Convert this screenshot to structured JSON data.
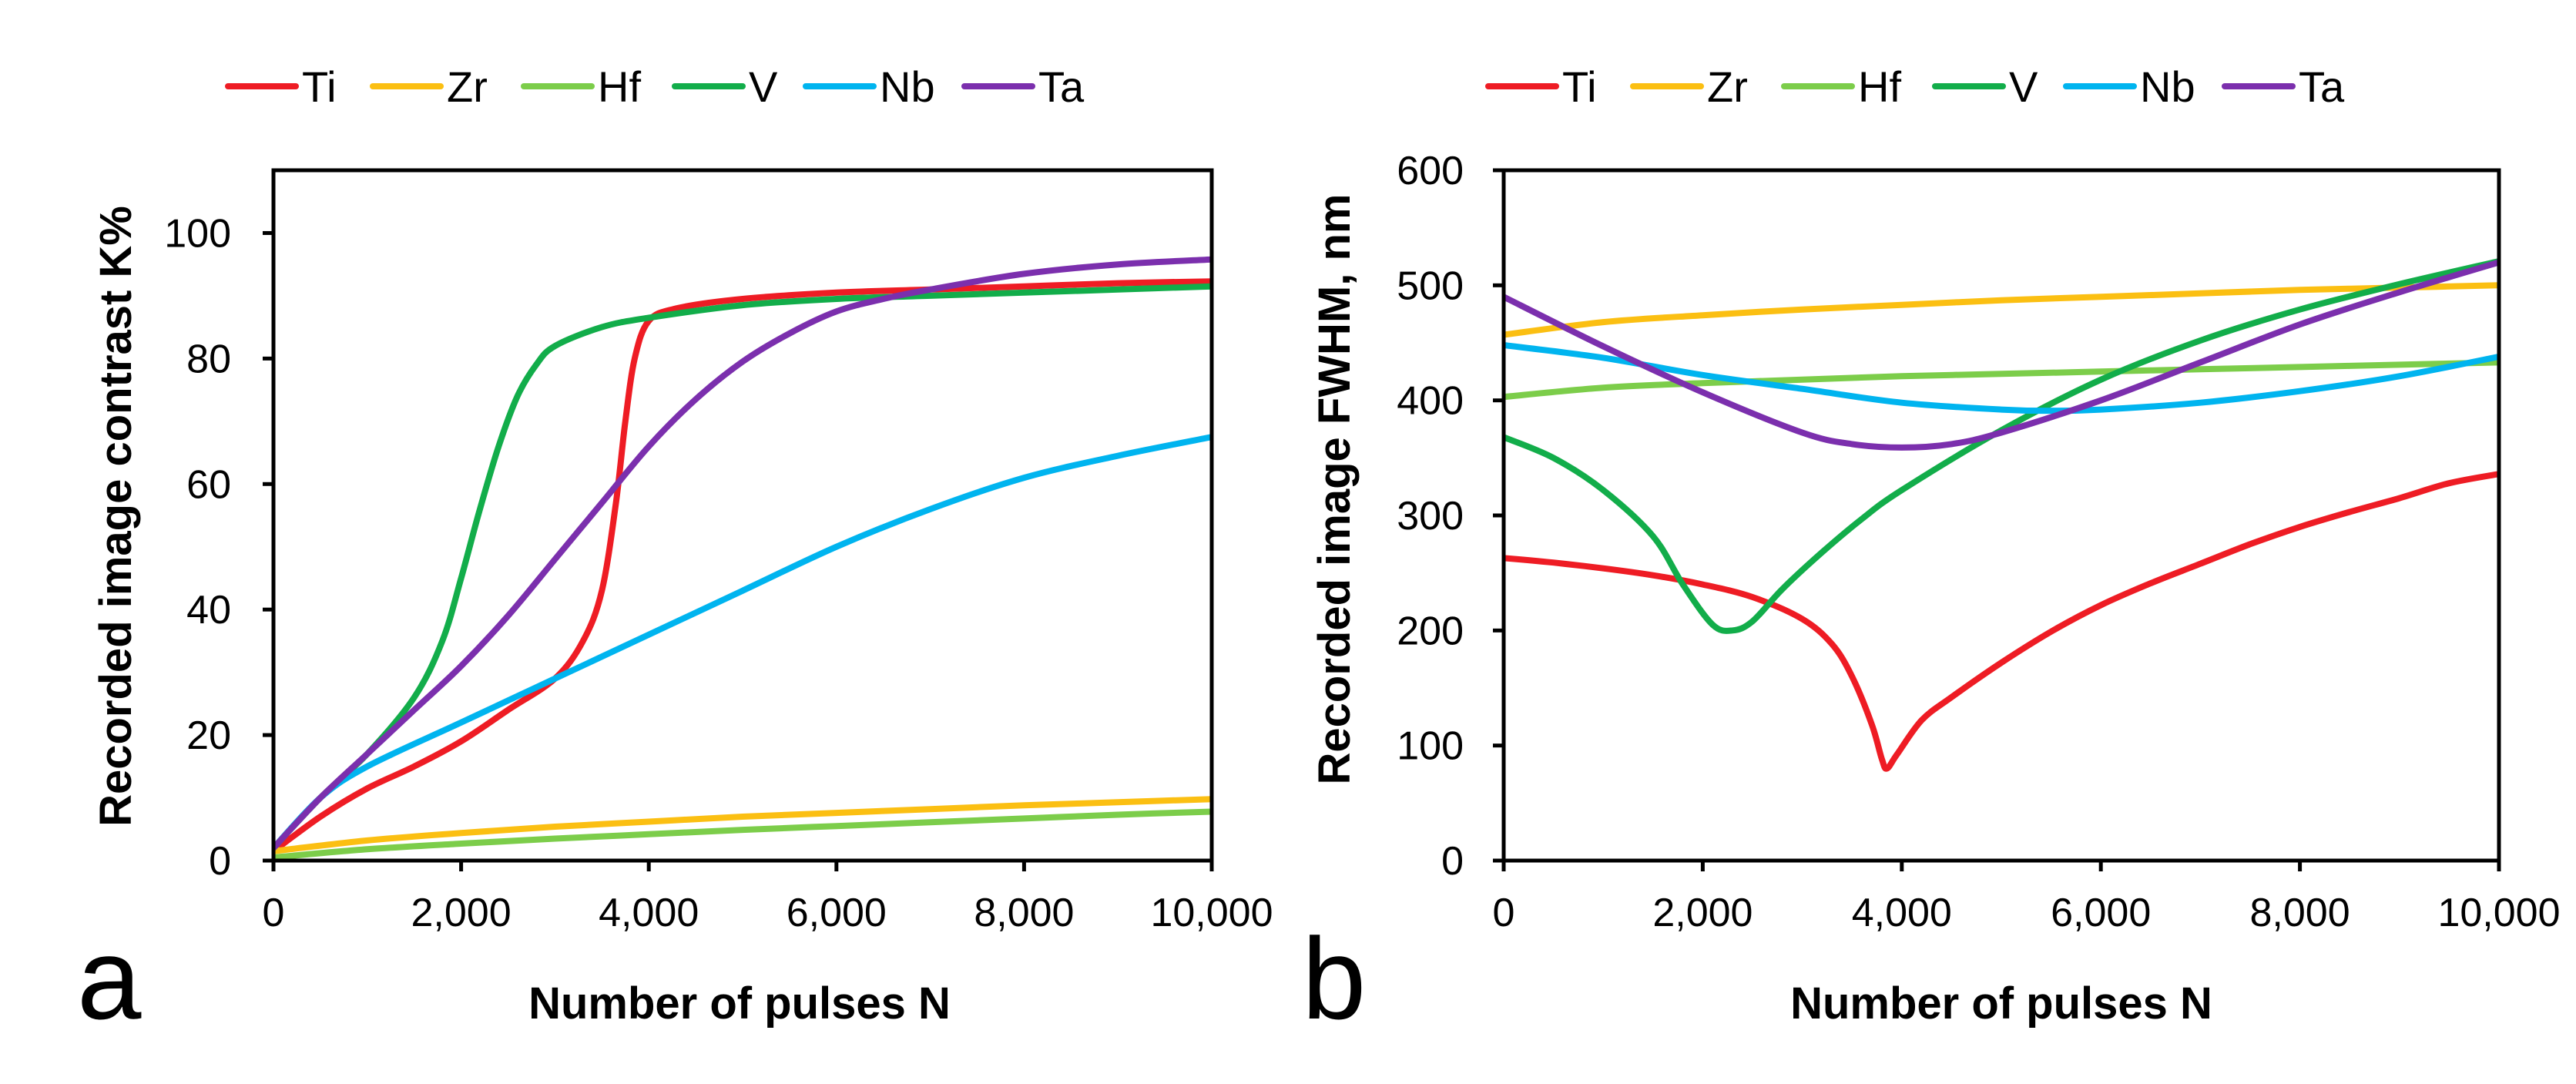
{
  "colors": {
    "Ti": "#ee1c24",
    "Zr": "#fbbf12",
    "Hf": "#7ccd4a",
    "V": "#12ad4a",
    "Nb": "#00b4ef",
    "Ta": "#7b2fad"
  },
  "chart_data": [
    {
      "type": "line",
      "panel_label": "a",
      "xlabel": "Number of pulses N",
      "ylabel": "Recorded image contrast K%",
      "xlim": [
        0,
        10000
      ],
      "ylim": [
        0,
        110
      ],
      "x_ticks": [
        0,
        2000,
        4000,
        6000,
        8000,
        10000
      ],
      "x_tick_labels": [
        "0",
        "2,000",
        "4,000",
        "6,000",
        "8,000",
        "10,000"
      ],
      "y_ticks": [
        0,
        20,
        40,
        60,
        80,
        100
      ],
      "y_tick_labels": [
        "0",
        "20",
        "40",
        "60",
        "80",
        "100"
      ],
      "legend": [
        "Ti",
        "Zr",
        "Hf",
        "V",
        "Nb",
        "Ta"
      ],
      "series": [
        {
          "name": "Ti",
          "x": [
            0,
            500,
            1000,
            1500,
            2000,
            2500,
            3000,
            3300,
            3500,
            3650,
            3750,
            3850,
            4000,
            4300,
            5000,
            6000,
            7000,
            8000,
            9000,
            10000
          ],
          "y": [
            1.5,
            7,
            11.5,
            15,
            19,
            24,
            29,
            35,
            43,
            57,
            70,
            80,
            86,
            88,
            89.5,
            90.5,
            91,
            91.5,
            92,
            92.3
          ]
        },
        {
          "name": "Zr",
          "x": [
            0,
            1000,
            2000,
            3000,
            4000,
            5000,
            6000,
            7000,
            8000,
            9000,
            10000
          ],
          "y": [
            1.5,
            3.2,
            4.4,
            5.4,
            6.2,
            7,
            7.6,
            8.2,
            8.8,
            9.3,
            9.8
          ]
        },
        {
          "name": "Hf",
          "x": [
            0,
            1000,
            2000,
            3000,
            4000,
            5000,
            6000,
            7000,
            8000,
            9000,
            10000
          ],
          "y": [
            0.5,
            1.8,
            2.7,
            3.5,
            4.2,
            4.9,
            5.5,
            6.1,
            6.7,
            7.3,
            7.8
          ]
        },
        {
          "name": "V",
          "x": [
            0,
            500,
            1000,
            1500,
            1800,
            2000,
            2200,
            2400,
            2600,
            2800,
            3000,
            3500,
            4000,
            5000,
            6000,
            7000,
            8000,
            9000,
            10000
          ],
          "y": [
            2,
            10,
            17,
            26,
            35,
            45,
            56,
            66,
            74,
            79,
            82,
            85,
            86.5,
            88.5,
            89.5,
            90,
            90.5,
            91,
            91.5
          ]
        },
        {
          "name": "Nb",
          "x": [
            0,
            500,
            1000,
            2000,
            3000,
            4000,
            5000,
            6000,
            7000,
            8000,
            9000,
            10000
          ],
          "y": [
            2,
            10,
            15,
            22,
            29,
            36,
            43,
            50,
            56,
            61,
            64.5,
            67.5
          ]
        },
        {
          "name": "Ta",
          "x": [
            0,
            500,
            1000,
            1500,
            2000,
            2500,
            3000,
            3500,
            4000,
            4500,
            5000,
            5500,
            6000,
            6500,
            7000,
            8000,
            9000,
            10000
          ],
          "y": [
            2,
            10,
            17,
            24,
            31,
            39,
            48,
            57,
            66,
            73.5,
            79.5,
            84,
            87.5,
            89.5,
            91,
            93.5,
            95,
            95.8
          ]
        }
      ]
    },
    {
      "type": "line",
      "panel_label": "b",
      "xlabel": "Number of pulses N",
      "ylabel": "Recorded image  FWHM, nm",
      "xlim": [
        0,
        10000
      ],
      "ylim": [
        0,
        600
      ],
      "x_ticks": [
        0,
        2000,
        4000,
        6000,
        8000,
        10000
      ],
      "x_tick_labels": [
        "0",
        "2,000",
        "4,000",
        "6,000",
        "8,000",
        "10,000"
      ],
      "y_ticks": [
        0,
        100,
        200,
        300,
        400,
        500,
        600
      ],
      "y_tick_labels": [
        "0",
        "100",
        "200",
        "300",
        "400",
        "500",
        "600"
      ],
      "legend": [
        "Ti",
        "Zr",
        "Hf",
        "V",
        "Nb",
        "Ta"
      ],
      "series": [
        {
          "name": "Ti",
          "x": [
            0,
            500,
            1000,
            1500,
            2000,
            2500,
            3000,
            3300,
            3500,
            3700,
            3800,
            3850,
            3950,
            4200,
            4500,
            5000,
            5500,
            6000,
            6500,
            7000,
            7500,
            8000,
            8500,
            9000,
            9500,
            10000
          ],
          "y": [
            263,
            259,
            254,
            248,
            240,
            229,
            210,
            188,
            160,
            118,
            88,
            80,
            92,
            122,
            142,
            172,
            199,
            222,
            241,
            258,
            275,
            290,
            303,
            315,
            328,
            336
          ]
        },
        {
          "name": "Zr",
          "x": [
            0,
            1000,
            2000,
            3000,
            4000,
            5000,
            6000,
            7000,
            8000,
            9000,
            10000
          ],
          "y": [
            457,
            468,
            474,
            479,
            483,
            487,
            490,
            493,
            496,
            498,
            500
          ]
        },
        {
          "name": "Hf",
          "x": [
            0,
            1000,
            2000,
            3000,
            4000,
            5000,
            6000,
            7000,
            8000,
            9000,
            10000
          ],
          "y": [
            403,
            411,
            415,
            418,
            421,
            423,
            425,
            427,
            429,
            431,
            433
          ]
        },
        {
          "name": "V",
          "x": [
            0,
            500,
            1000,
            1500,
            1800,
            2100,
            2300,
            2500,
            2800,
            3200,
            3600,
            4000,
            5000,
            6000,
            7000,
            8000,
            9000,
            10000
          ],
          "y": [
            368,
            350,
            322,
            282,
            240,
            205,
            200,
            208,
            236,
            268,
            297,
            322,
            374,
            418,
            452,
            479,
            501,
            521
          ]
        },
        {
          "name": "Nb",
          "x": [
            0,
            1000,
            2000,
            3000,
            4000,
            5000,
            5500,
            6000,
            7000,
            8000,
            9000,
            10000
          ],
          "y": [
            448,
            437,
            422,
            410,
            398,
            392,
            391,
            392,
            398,
            408,
            421,
            438
          ]
        },
        {
          "name": "Ta",
          "x": [
            0,
            1000,
            2000,
            3000,
            3500,
            4000,
            4500,
            5000,
            6000,
            7000,
            8000,
            9000,
            10000
          ],
          "y": [
            490,
            447,
            407,
            372,
            362,
            359,
            362,
            372,
            400,
            433,
            466,
            494,
            520
          ]
        }
      ]
    }
  ]
}
